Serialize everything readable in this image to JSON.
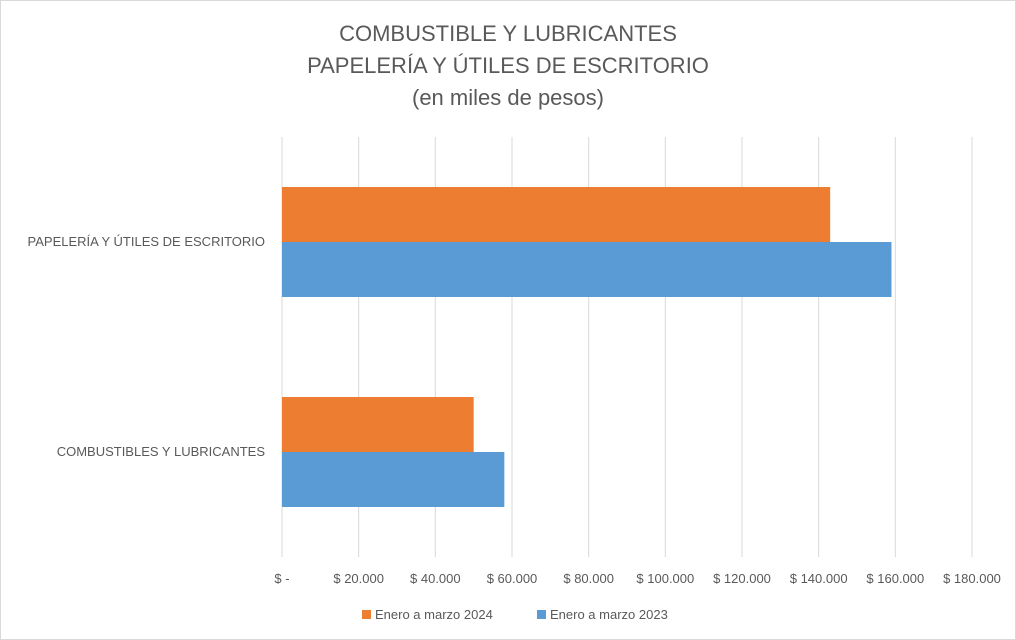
{
  "chart_data": {
    "type": "bar",
    "orientation": "horizontal",
    "title_lines": [
      "COMBUSTIBLE Y LUBRICANTES",
      "PAPELERÍA Y ÚTILES DE ESCRITORIO",
      "(en miles de pesos)"
    ],
    "categories": [
      "PAPELERÍA Y ÚTILES DE ESCRITORIO",
      "COMBUSTIBLES Y LUBRICANTES"
    ],
    "series": [
      {
        "name": "Enero a marzo 2024",
        "color": "#ed7d31",
        "values": [
          143000,
          50000
        ]
      },
      {
        "name": "Enero a marzo 2023",
        "color": "#5b9bd5",
        "values": [
          159000,
          58000
        ]
      }
    ],
    "x_ticks": [
      {
        "value": 0,
        "label": "$ -"
      },
      {
        "value": 20000,
        "label": "$ 20.000"
      },
      {
        "value": 40000,
        "label": "$ 40.000"
      },
      {
        "value": 60000,
        "label": "$ 60.000"
      },
      {
        "value": 80000,
        "label": "$ 80.000"
      },
      {
        "value": 100000,
        "label": "$ 100.000"
      },
      {
        "value": 120000,
        "label": "$ 120.000"
      },
      {
        "value": 140000,
        "label": "$ 140.000"
      },
      {
        "value": 160000,
        "label": "$ 160.000"
      },
      {
        "value": 180000,
        "label": "$ 180.000"
      }
    ],
    "xlim": [
      0,
      180000
    ],
    "grid": true,
    "legend_position": "bottom"
  }
}
